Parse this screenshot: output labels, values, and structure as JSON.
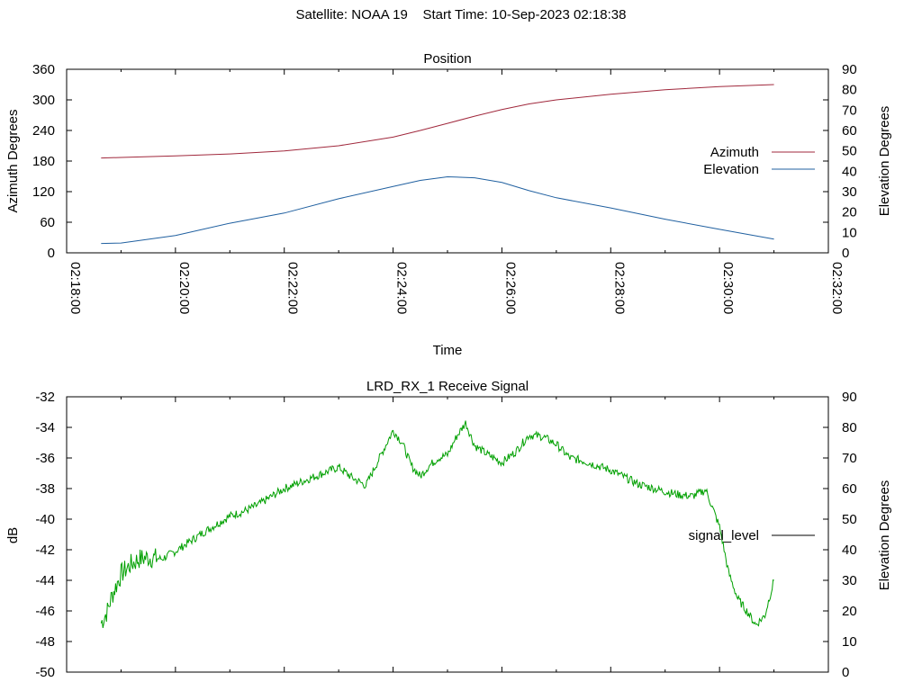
{
  "header": {
    "satellite": "Satellite: NOAA 19",
    "start_time": "Start Time: 10-Sep-2023 02:18:38"
  },
  "chart_data": [
    {
      "type": "line",
      "title": "Position",
      "xlabel": "Time",
      "ylabel": "Azimuth Degrees",
      "y2label": "Elevation Degrees",
      "xlim": [
        "02:18:00",
        "02:32:00"
      ],
      "xticks": [
        "02:18:00",
        "02:20:00",
        "02:22:00",
        "02:24:00",
        "02:26:00",
        "02:28:00",
        "02:30:00",
        "02:32:00"
      ],
      "ylim": [
        0,
        360
      ],
      "yticks": [
        "0",
        "60",
        "120",
        "180",
        "240",
        "300",
        "360"
      ],
      "y2lim": [
        0,
        90
      ],
      "y2ticks": [
        "0",
        "10",
        "20",
        "30",
        "40",
        "50",
        "60",
        "70",
        "80",
        "90"
      ],
      "grid": false,
      "legend": "right",
      "series": [
        {
          "name": "Azimuth",
          "axis": "y",
          "color": "#a0283c",
          "x": [
            "02:18:38",
            "02:19:00",
            "02:20:00",
            "02:21:00",
            "02:22:00",
            "02:23:00",
            "02:24:00",
            "02:24:30",
            "02:25:00",
            "02:25:30",
            "02:26:00",
            "02:26:30",
            "02:27:00",
            "02:28:00",
            "02:29:00",
            "02:30:00",
            "02:31:00"
          ],
          "values": [
            186,
            187,
            190,
            194,
            200,
            210,
            227,
            240,
            254,
            268,
            281,
            292,
            300,
            311,
            320,
            326,
            330
          ]
        },
        {
          "name": "Elevation",
          "axis": "y2",
          "color": "#2060a0",
          "x": [
            "02:18:38",
            "02:19:00",
            "02:20:00",
            "02:21:00",
            "02:22:00",
            "02:23:00",
            "02:24:00",
            "02:24:30",
            "02:25:00",
            "02:25:30",
            "02:26:00",
            "02:26:30",
            "02:27:00",
            "02:28:00",
            "02:29:00",
            "02:30:00",
            "02:31:00"
          ],
          "values": [
            4.6,
            4.8,
            8.5,
            14.5,
            19.5,
            26.5,
            32.5,
            35.5,
            37.3,
            36.8,
            34.5,
            30.5,
            27.0,
            22.0,
            16.5,
            11.5,
            6.7
          ]
        }
      ]
    },
    {
      "type": "line",
      "title": "LRD_RX_1 Receive Signal",
      "ylabel": "dB",
      "y2label": "Elevation Degrees",
      "xlim": [
        "02:18:00",
        "02:32:00"
      ],
      "ylim": [
        -50,
        -32
      ],
      "yticks": [
        "-50",
        "-48",
        "-46",
        "-44",
        "-42",
        "-40",
        "-38",
        "-36",
        "-34",
        "-32"
      ],
      "y2lim": [
        0,
        90
      ],
      "y2ticks": [
        "0",
        "10",
        "20",
        "30",
        "40",
        "50",
        "60",
        "70",
        "80",
        "90"
      ],
      "grid": false,
      "legend": "right",
      "series": [
        {
          "name": "signal_level",
          "axis": "y",
          "color": "#00a000",
          "x": [
            "02:18:38",
            "02:18:45",
            "02:18:50",
            "02:19:00",
            "02:19:10",
            "02:19:20",
            "02:19:30",
            "02:19:45",
            "02:20:00",
            "02:20:15",
            "02:20:30",
            "02:21:00",
            "02:21:15",
            "02:21:30",
            "02:22:00",
            "02:22:30",
            "02:23:00",
            "02:23:15",
            "02:23:30",
            "02:23:45",
            "02:24:00",
            "02:24:10",
            "02:24:20",
            "02:24:30",
            "02:24:40",
            "02:24:50",
            "02:25:00",
            "02:25:10",
            "02:25:20",
            "02:25:30",
            "02:25:45",
            "02:26:00",
            "02:26:15",
            "02:26:30",
            "02:26:45",
            "02:27:00",
            "02:27:15",
            "02:27:30",
            "02:28:00",
            "02:28:30",
            "02:29:00",
            "02:29:15",
            "02:29:30",
            "02:29:45",
            "02:30:00",
            "02:30:10",
            "02:30:20",
            "02:30:30",
            "02:30:40",
            "02:30:50",
            "02:31:00"
          ],
          "values": [
            -46.8,
            -46.0,
            -45.0,
            -43.6,
            -43.0,
            -42.6,
            -42.5,
            -42.6,
            -42.1,
            -41.5,
            -40.9,
            -39.8,
            -39.5,
            -39.1,
            -38.0,
            -37.3,
            -36.6,
            -37.3,
            -37.8,
            -36.0,
            -34.2,
            -35.0,
            -36.5,
            -37.2,
            -36.5,
            -36.0,
            -35.8,
            -34.6,
            -33.7,
            -35.2,
            -35.8,
            -36.3,
            -35.6,
            -34.5,
            -34.6,
            -35.1,
            -36.0,
            -36.2,
            -36.8,
            -37.7,
            -38.2,
            -38.4,
            -38.5,
            -38.1,
            -40.5,
            -43.5,
            -45.2,
            -46.0,
            -46.9,
            -46.3,
            -44.0
          ]
        }
      ]
    }
  ]
}
